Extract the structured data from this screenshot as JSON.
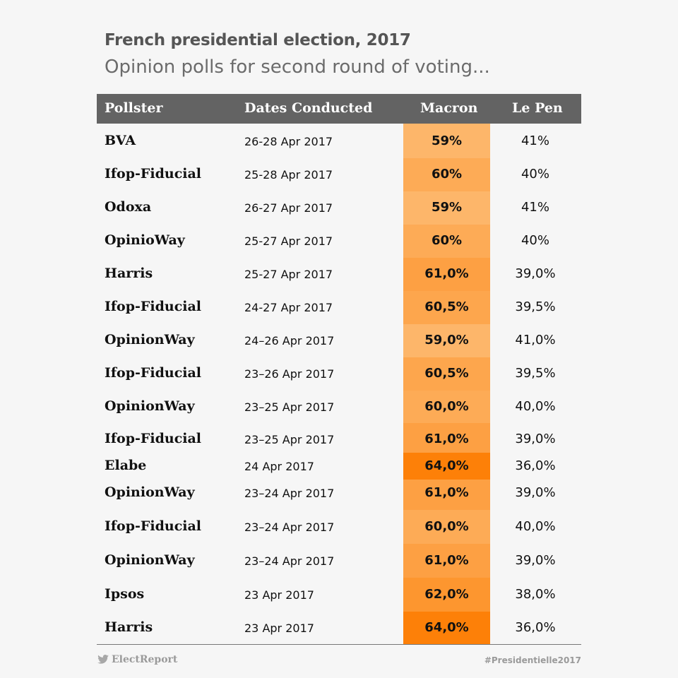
{
  "title": "French presidential election, 2017",
  "subtitle": "Opinion polls for second round of voting...",
  "chart_data": {
    "type": "table",
    "columns": [
      "Pollster",
      "Dates Conducted",
      "Macron",
      "Le Pen"
    ],
    "rows": [
      {
        "pollster": "BVA",
        "dates": "26-28 Apr 2017",
        "macron": "59%",
        "lepen": "41%",
        "macron_value": 59
      },
      {
        "pollster": "Ifop-Fiducial",
        "dates": "25-28 Apr 2017",
        "macron": "60%",
        "lepen": "40%",
        "macron_value": 60
      },
      {
        "pollster": "Odoxa",
        "dates": "26-27 Apr 2017",
        "macron": "59%",
        "lepen": "41%",
        "macron_value": 59
      },
      {
        "pollster": "OpinioWay",
        "dates": "25-27 Apr 2017",
        "macron": "60%",
        "lepen": "40%",
        "macron_value": 60
      },
      {
        "pollster": "Harris",
        "dates": "25-27 Apr 2017",
        "macron": "61,0%",
        "lepen": "39,0%",
        "macron_value": 61
      },
      {
        "pollster": "Ifop-Fiducial",
        "dates": "24-27 Apr 2017",
        "macron": "60,5%",
        "lepen": "39,5%",
        "macron_value": 60.5
      },
      {
        "pollster": "OpinionWay",
        "dates": "24–26 Apr 2017",
        "macron": "59,0%",
        "lepen": "41,0%",
        "macron_value": 59
      },
      {
        "pollster": "Ifop-Fiducial",
        "dates": "23–26 Apr 2017",
        "macron": "60,5%",
        "lepen": "39,5%",
        "macron_value": 60.5
      },
      {
        "pollster": "OpinionWay",
        "dates": "23–25 Apr 2017",
        "macron": "60,0%",
        "lepen": "40,0%",
        "macron_value": 60
      },
      {
        "pollster": "Ifop-Fiducial",
        "dates": "23–25 Apr 2017",
        "macron": "61,0%",
        "lepen": "39,0%",
        "macron_value": 61
      },
      {
        "pollster": "Elabe",
        "dates": "24 Apr 2017",
        "macron": "64,0%",
        "lepen": "36,0%",
        "macron_value": 64
      },
      {
        "pollster": "OpinionWay",
        "dates": "23–24 Apr 2017",
        "macron": "61,0%",
        "lepen": "39,0%",
        "macron_value": 61
      },
      {
        "pollster": "Ifop-Fiducial",
        "dates": "23–24 Apr 2017",
        "macron": "60,0%",
        "lepen": "40,0%",
        "macron_value": 60
      },
      {
        "pollster": "OpinionWay",
        "dates": "23–24 Apr 2017",
        "macron": "61,0%",
        "lepen": "39,0%",
        "macron_value": 61
      },
      {
        "pollster": "Ipsos",
        "dates": "23 Apr 2017",
        "macron": "62,0%",
        "lepen": "38,0%",
        "macron_value": 62
      },
      {
        "pollster": "Harris",
        "dates": "23 Apr 2017",
        "macron": "64,0%",
        "lepen": "36,0%",
        "macron_value": 64
      }
    ]
  },
  "footer": {
    "brand": "ElectReport",
    "hashtag": "#Presidentielle2017"
  },
  "colors": {
    "header_bg": "#636363",
    "macron_light": "#fdb66a",
    "macron_dark": "#fd8008"
  }
}
